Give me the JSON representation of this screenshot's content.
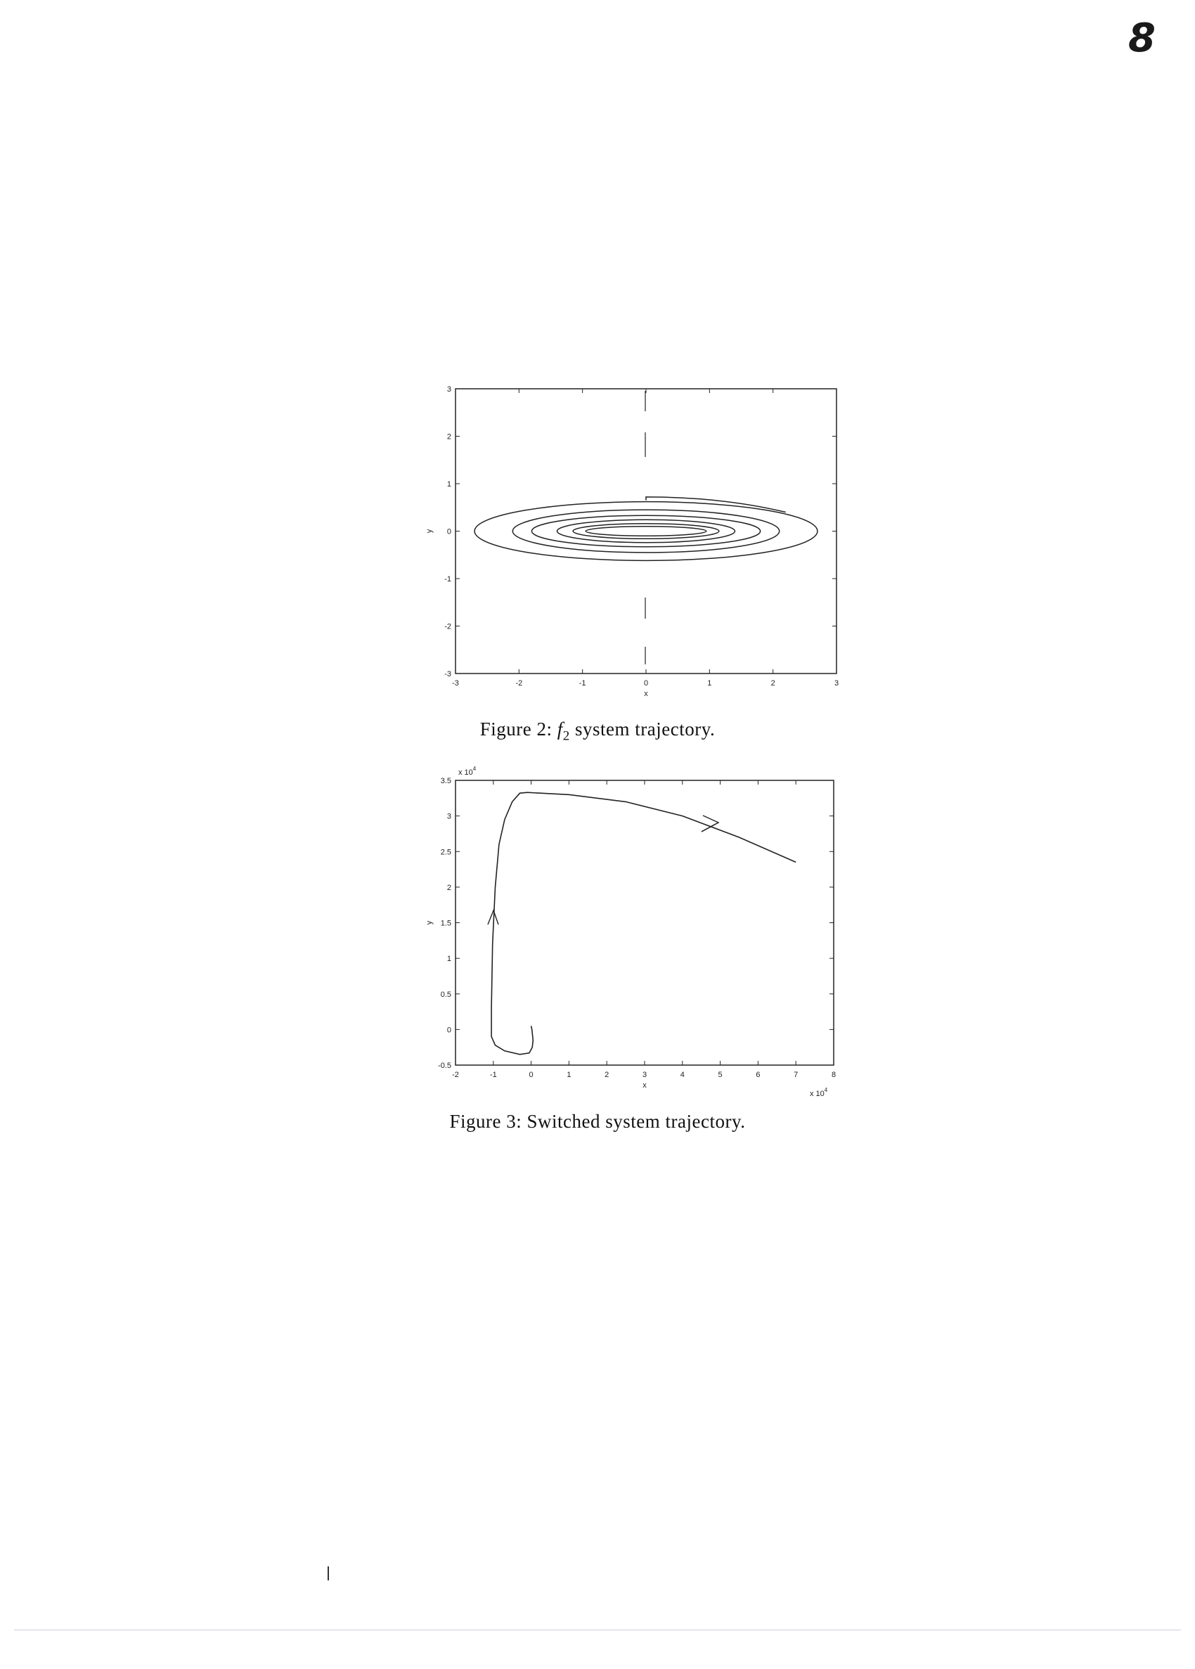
{
  "page": {
    "number": "8"
  },
  "figures": [
    {
      "id": "figure-2",
      "caption_prefix": "Figure 2: ",
      "caption_math": "f",
      "caption_sub": "2",
      "caption_rest": " system trajectory.",
      "chart_data": {
        "type": "line",
        "xlabel": "x",
        "ylabel": "y",
        "xlim": [
          -3,
          3
        ],
        "ylim": [
          -3,
          3
        ],
        "x_ticks": [
          "-3",
          "-2",
          "-1",
          "0",
          "1",
          "2",
          "3"
        ],
        "y_ticks": [
          "3",
          "2",
          "1",
          "0",
          "-1",
          "-2",
          "-3"
        ],
        "grid": false,
        "series": [
          {
            "orbit_semi_axes": [
              [
                2.7,
                0.62
              ],
              [
                2.1,
                0.45
              ],
              [
                1.8,
                0.33
              ],
              [
                1.4,
                0.24
              ],
              [
                1.15,
                0.16
              ],
              [
                0.95,
                0.1
              ]
            ]
          }
        ]
      }
    },
    {
      "id": "figure-3",
      "caption": "Figure 3: Switched system trajectory.",
      "chart_data": {
        "type": "line",
        "xlabel": "x",
        "ylabel": "y",
        "x_multiplier": "x 10",
        "x_multiplier_exp": "4",
        "y_multiplier": "x 10",
        "y_multiplier_exp": "4",
        "xlim": [
          -2,
          8
        ],
        "ylim": [
          -0.5,
          3.5
        ],
        "x_ticks": [
          "-2",
          "-1",
          "0",
          "1",
          "2",
          "3",
          "4",
          "5",
          "6",
          "7",
          "8"
        ],
        "y_ticks": [
          "3.5",
          "3",
          "2.5",
          "2",
          "1.5",
          "1",
          "0.5",
          "0",
          "-0.5"
        ],
        "grid": false,
        "series": [
          {
            "x": [
              0.0,
              0.02,
              0.05,
              0.03,
              -0.05,
              -0.3,
              -0.7,
              -0.95,
              -1.05,
              -1.05,
              -1.02,
              -0.95,
              -0.85,
              -0.7,
              -0.5,
              -0.3,
              -0.1,
              1.0,
              2.5,
              4.0,
              5.5,
              7.0
            ],
            "y": [
              0.05,
              0.0,
              -0.15,
              -0.25,
              -0.33,
              -0.35,
              -0.3,
              -0.22,
              -0.1,
              0.3,
              1.2,
              2.0,
              2.6,
              2.95,
              3.2,
              3.32,
              3.33,
              3.3,
              3.2,
              3.0,
              2.7,
              2.35
            ]
          }
        ]
      }
    }
  ]
}
